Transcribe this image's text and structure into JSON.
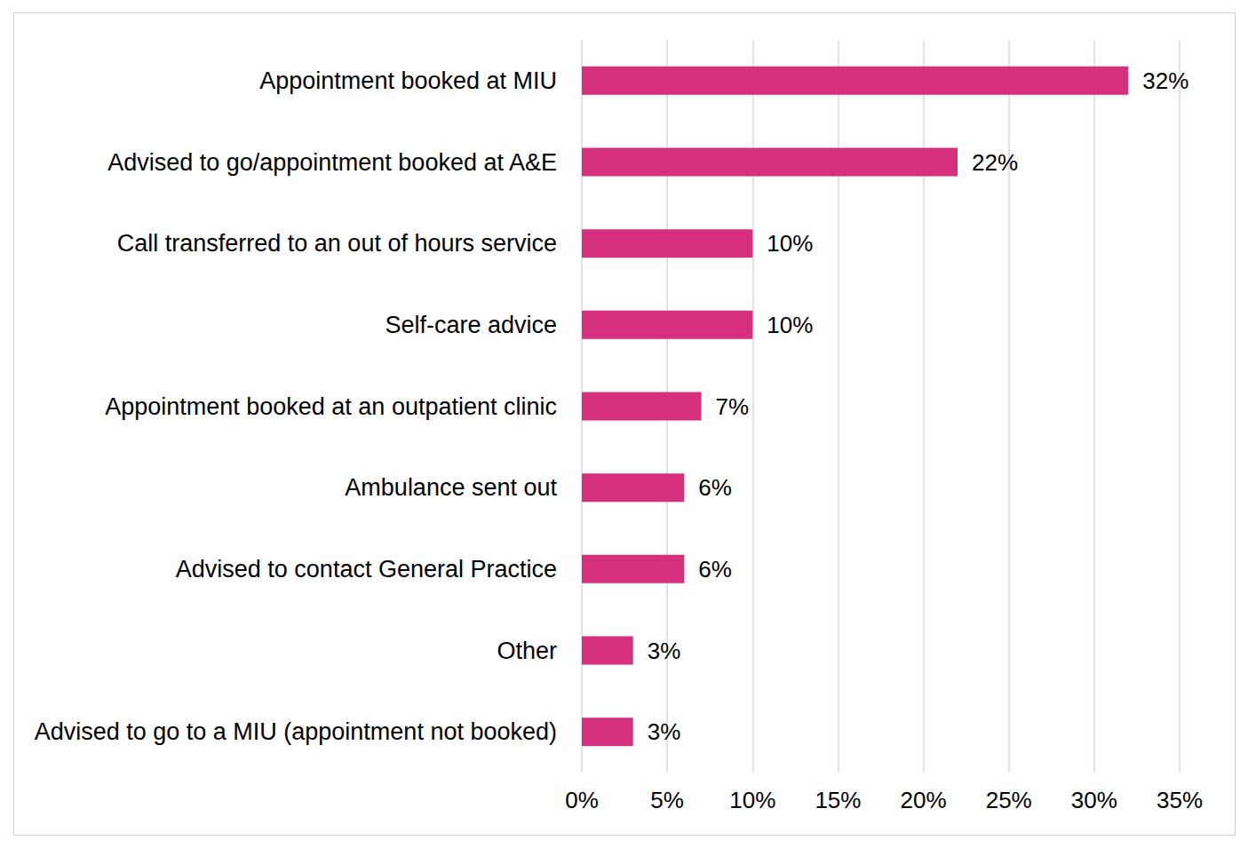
{
  "chart_data": {
    "type": "bar",
    "orientation": "horizontal",
    "categories": [
      "Appointment booked at MIU",
      "Advised to go/appointment booked at A&E",
      "Call transferred to an out of hours service",
      "Self-care advice",
      "Appointment booked at an outpatient clinic",
      "Ambulance sent out",
      "Advised to contact General Practice",
      "Other",
      "Advised to go to a MIU (appointment not booked)"
    ],
    "values": [
      32,
      22,
      10,
      10,
      7,
      6,
      6,
      3,
      3
    ],
    "value_labels": [
      "32%",
      "22%",
      "10%",
      "10%",
      "7%",
      "6%",
      "6%",
      "3%",
      "3%"
    ],
    "color": "#d52f7d",
    "xlim": [
      0,
      35
    ],
    "xticks": [
      {
        "value": 0,
        "label": "0%"
      },
      {
        "value": 5,
        "label": "5%"
      },
      {
        "value": 10,
        "label": "10%"
      },
      {
        "value": 15,
        "label": "15%"
      },
      {
        "value": 20,
        "label": "20%"
      },
      {
        "value": 25,
        "label": "25%"
      },
      {
        "value": 30,
        "label": "30%"
      },
      {
        "value": 35,
        "label": "35%"
      }
    ],
    "grid": true,
    "data_labels": true
  }
}
